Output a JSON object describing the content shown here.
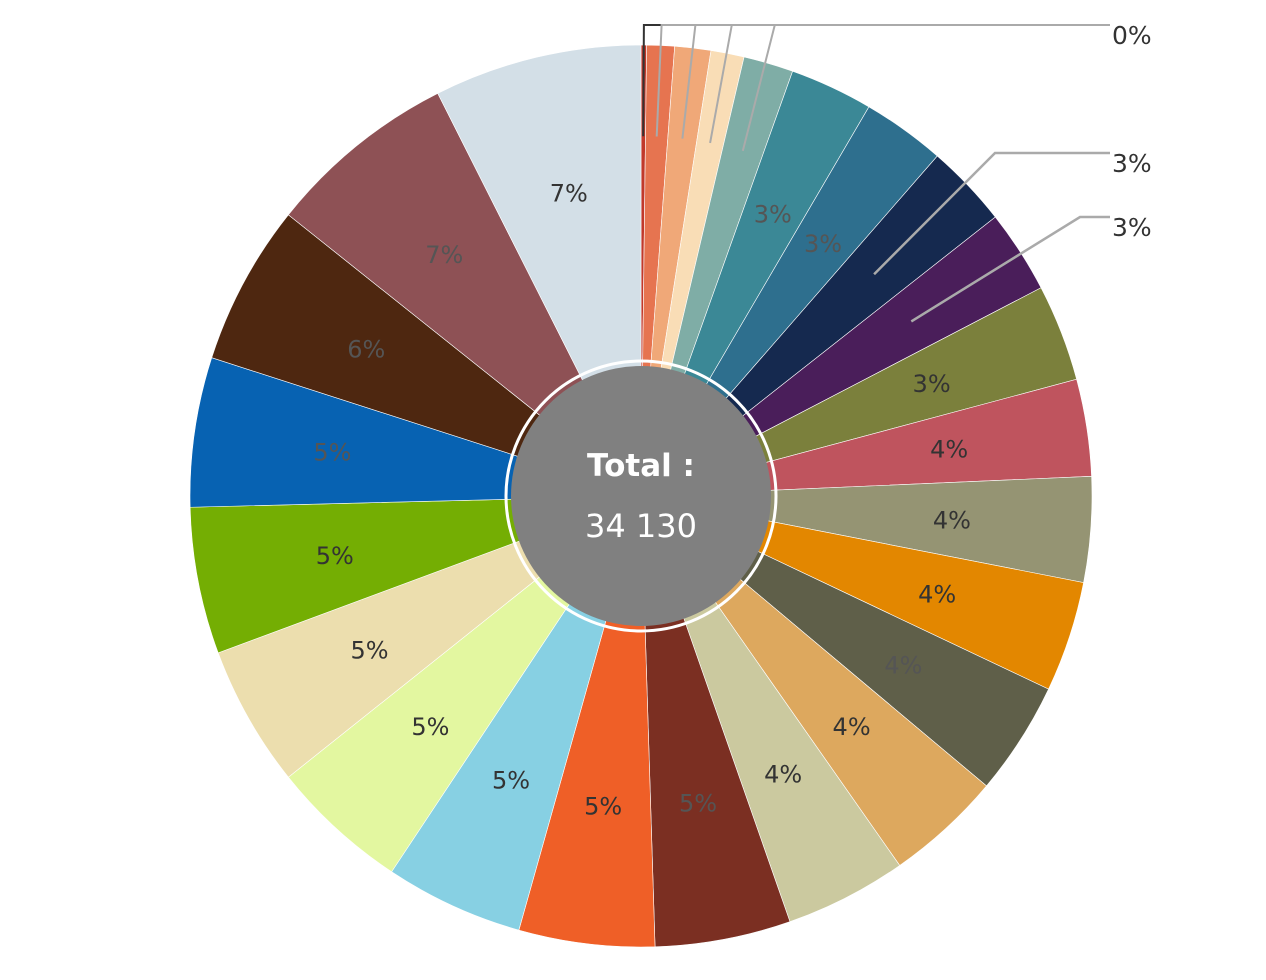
{
  "chart_data": {
    "type": "pie",
    "variant": "donut-with-center-total",
    "center": {
      "title": "Total :",
      "value": "34 130"
    },
    "slices": [
      {
        "label": "0%",
        "value": 0.2,
        "color": "#c0392b",
        "label_mode": "callout"
      },
      {
        "label": "",
        "value": 1.0,
        "color": "#e67450",
        "label_mode": "callout"
      },
      {
        "label": "",
        "value": 1.3,
        "color": "#f0a878",
        "label_mode": "callout"
      },
      {
        "label": "",
        "value": 1.2,
        "color": "#f9ddb6",
        "label_mode": "callout"
      },
      {
        "label": "",
        "value": 1.8,
        "color": "#7fada6",
        "label_mode": "callout"
      },
      {
        "label": "3%",
        "value": 3.0,
        "color": "#3b8896",
        "label_mode": "inside"
      },
      {
        "label": "3%",
        "value": 3.0,
        "color": "#2e6f8e",
        "label_mode": "inside"
      },
      {
        "label": "3%",
        "value": 3.0,
        "color": "#15294f",
        "label_mode": "callout"
      },
      {
        "label": "3%",
        "value": 3.0,
        "color": "#4a1e5a",
        "label_mode": "callout"
      },
      {
        "label": "3%",
        "value": 3.5,
        "color": "#7b803c",
        "label_mode": "inside"
      },
      {
        "label": "4%",
        "value": 3.5,
        "color": "#bf545e",
        "label_mode": "inside"
      },
      {
        "label": "4%",
        "value": 3.8,
        "color": "#959473",
        "label_mode": "inside"
      },
      {
        "label": "4%",
        "value": 4.0,
        "color": "#e38700",
        "label_mode": "inside"
      },
      {
        "label": "4%",
        "value": 4.1,
        "color": "#5f5f49",
        "label_mode": "inside"
      },
      {
        "label": "4%",
        "value": 4.2,
        "color": "#dda85e",
        "label_mode": "inside"
      },
      {
        "label": "4%",
        "value": 4.4,
        "color": "#cbc99f",
        "label_mode": "inside"
      },
      {
        "label": "5%",
        "value": 4.9,
        "color": "#7b2f22",
        "label_mode": "inside"
      },
      {
        "label": "5%",
        "value": 4.9,
        "color": "#ef5f27",
        "label_mode": "inside"
      },
      {
        "label": "5%",
        "value": 5.0,
        "color": "#87d0e3",
        "label_mode": "inside"
      },
      {
        "label": "5%",
        "value": 5.0,
        "color": "#e3f7a0",
        "label_mode": "inside"
      },
      {
        "label": "5%",
        "value": 5.1,
        "color": "#ecdeae",
        "label_mode": "inside"
      },
      {
        "label": "5%",
        "value": 5.3,
        "color": "#74ae03",
        "label_mode": "inside"
      },
      {
        "label": "5%",
        "value": 5.4,
        "color": "#0762b2",
        "label_mode": "inside"
      },
      {
        "label": "6%",
        "value": 5.8,
        "color": "#4e2710",
        "label_mode": "inside"
      },
      {
        "label": "7%",
        "value": 6.9,
        "color": "#8e5155",
        "label_mode": "inside"
      },
      {
        "label": "7%",
        "value": 7.5,
        "color": "#d3dfe7",
        "label_mode": "inside"
      }
    ],
    "center_fill": "#808080"
  }
}
